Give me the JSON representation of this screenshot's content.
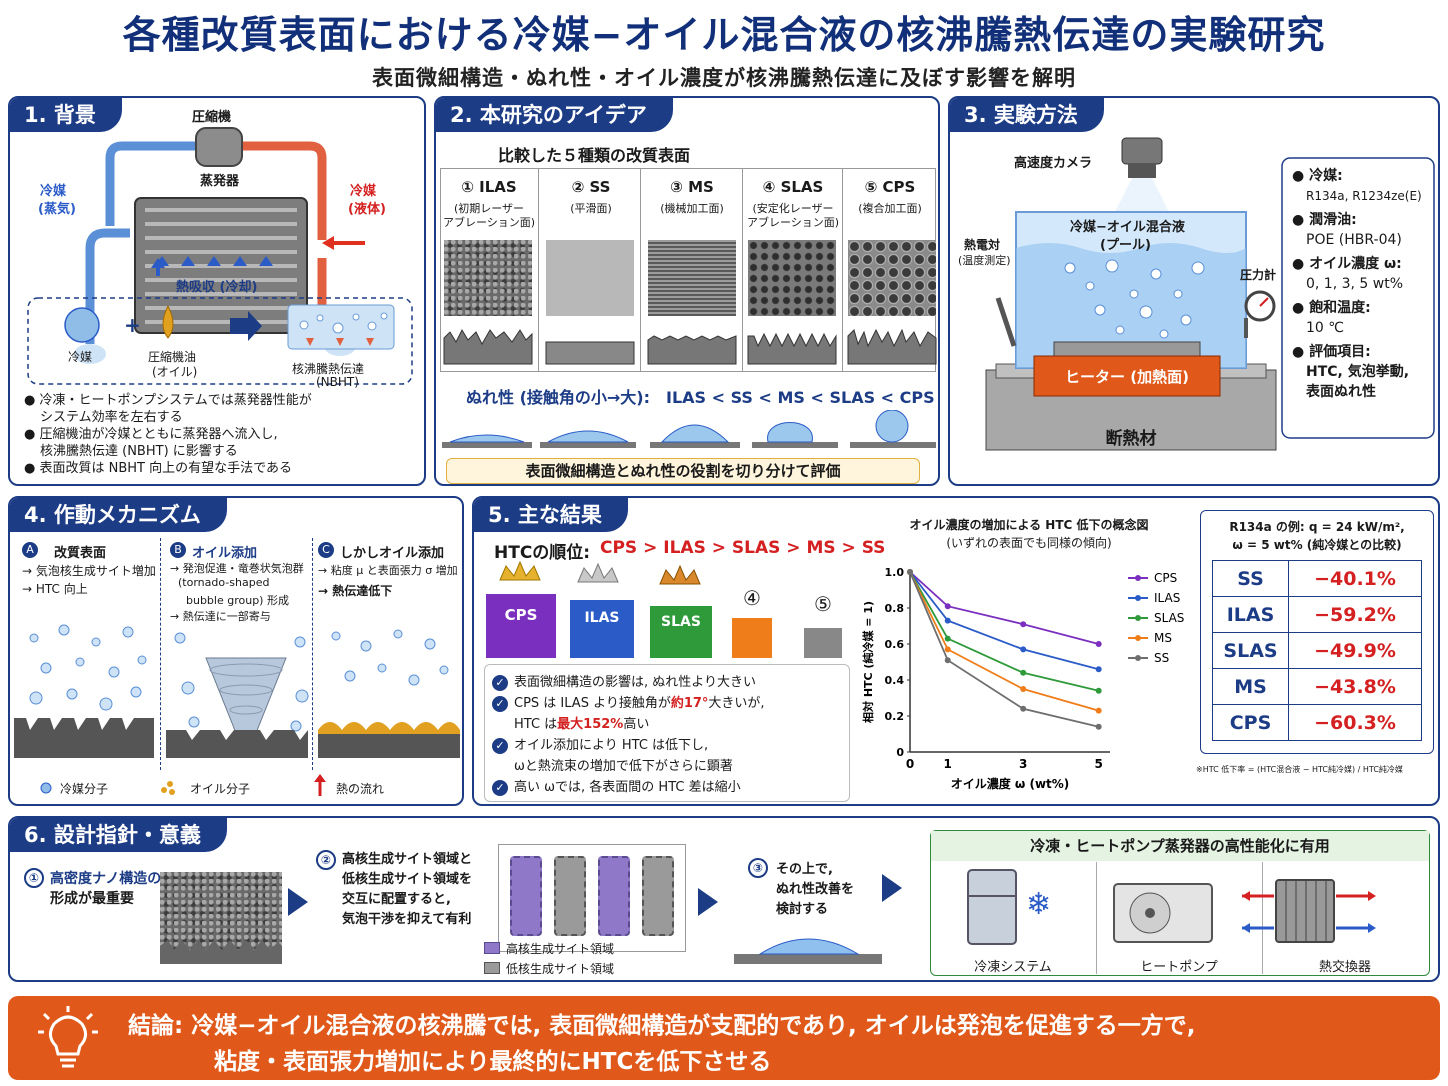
{
  "header": {
    "title": "各種改質表面における冷媒−オイル混合液の核沸騰熱伝達の実験研究",
    "subtitle": "表面微細構造・ぬれ性・オイル濃度が核沸騰熱伝達に及ぼす影響を解明"
  },
  "s1": {
    "title": "1. 背景",
    "compressor": "圧縮機",
    "evaporator": "蒸発器",
    "vapor1": "冷媒",
    "vapor2": "(蒸気)",
    "liquid1": "冷媒",
    "liquid2": "(液体)",
    "heat_absorb": "熱吸収 (冷却)",
    "refrigerant": "冷媒",
    "oil1": "圧縮機油",
    "oil2": "(オイル)",
    "nbht1": "核沸騰熱伝達",
    "nbht2": "(NBHT)",
    "bullets": [
      "冷凍・ヒートポンプシステムでは蒸発器性能が",
      "システム効率を左右する",
      "圧縮機油が冷媒とともに蒸発器へ流入し,",
      "核沸騰熱伝達 (NBHT) に影響する",
      "表面改質は NBHT 向上の有望な手法である"
    ]
  },
  "s2": {
    "title": "2. 本研究のアイデア",
    "compare": "比較した５種類の改質表面",
    "surfaces": [
      {
        "name": "① ILAS",
        "d1": "(初期レーザー",
        "d2": "アブレーション面)"
      },
      {
        "name": "② SS",
        "d1": "(平滑面)",
        "d2": ""
      },
      {
        "name": "③ MS",
        "d1": "(機械加工面)",
        "d2": ""
      },
      {
        "name": "④ SLAS",
        "d1": "(安定化レーザー",
        "d2": "アブレーション面)"
      },
      {
        "name": "⑤ CPS",
        "d1": "(複合加工面)",
        "d2": ""
      }
    ],
    "wettability": "ぬれ性 (接触角の小→大):　ILAS < SS < MS < SLAS < CPS",
    "role": "表面微細構造とぬれ性の役割を切り分けて評価"
  },
  "s3": {
    "title": "3. 実験方法",
    "camera": "高速度カメラ",
    "pool1": "冷媒−オイル混合液",
    "pool2": "(プール)",
    "tc1": "熱電対",
    "tc2": "(温度測定)",
    "gauge": "圧力計",
    "heater": "ヒーター (加熱面)",
    "insulation": "断熱材",
    "specs": [
      {
        "label": "冷媒:",
        "value": "R134a,  R1234ze(E)"
      },
      {
        "label": "潤滑油:",
        "value": "POE (HBR-04)"
      },
      {
        "label": "オイル濃度 ω:",
        "value": "0, 1, 3, 5 wt%"
      },
      {
        "label": "飽和温度:",
        "value": "10 ℃"
      },
      {
        "label": "評価項目:",
        "value": "HTC, 気泡挙動,",
        "value2": "表面ぬれ性"
      }
    ]
  },
  "s4": {
    "title": "4. 作動メカニズム",
    "a_head": "改質表面",
    "a1": "→ 気泡核生成サイト増加",
    "a2": "→ HTC 向上",
    "b_head": "オイル添加",
    "b1": "→ 発泡促進・竜巻状気泡群",
    "b2": "(tornado-shaped",
    "b3": "bubble group) 形成",
    "b4": "→ 熱伝達に一部寄与",
    "c_head": "しかしオイル添加",
    "c1": "→ 粘度 μ と表面張力 σ 増加",
    "c2": "→ 熱伝達低下",
    "legend_ref": "冷媒分子",
    "legend_oil": "オイル分子",
    "legend_heat": "熱の流れ",
    "labels": [
      "A",
      "B",
      "C"
    ]
  },
  "s5": {
    "title": "5. 主な結果",
    "rank_label": "HTCの順位:",
    "rank_value": "CPS > ILAS > SLAS > MS > SS",
    "podium": [
      "CPS",
      "ILAS",
      "SLAS",
      "④",
      "⑤"
    ],
    "findings": [
      "表面微細構造の影響は, ぬれ性より大きい",
      "CPS は ILAS より接触角が",
      "約17°",
      "大きいが,",
      "HTC は",
      "最大152%",
      "高い",
      "オイル添加により HTC は低下し,",
      "ωと熱流束の増加で低下がさらに顕著",
      "高い ωでは, 各表面間の HTC 差は縮小"
    ],
    "table_caption1": "R134a の例: q = 24 kW/m²,",
    "table_caption2": "ω = 5 wt% (純冷媒との比較)",
    "rows": [
      {
        "name": "SS",
        "value": "−40.1%"
      },
      {
        "name": "ILAS",
        "value": "−59.2%"
      },
      {
        "name": "SLAS",
        "value": "−49.9%"
      },
      {
        "name": "MS",
        "value": "−43.8%"
      },
      {
        "name": "CPS",
        "value": "−60.3%"
      }
    ],
    "footnote": "※HTC 低下率 = (HTC混合液 − HTC純冷媒) / HTC純冷媒"
  },
  "chart_data": {
    "type": "line",
    "title": "オイル濃度の増加による HTC 低下の概念図",
    "subtitle": "(いずれの表面でも同様の傾向)",
    "xlabel": "オイル濃度 ω (wt%)",
    "ylabel": "相対 HTC (純冷媒 = 1)",
    "x": [
      0,
      1,
      3,
      5
    ],
    "xlim": [
      0,
      5.3
    ],
    "ylim": [
      0,
      1.0
    ],
    "xticks": [
      "0",
      "1",
      "3",
      "5"
    ],
    "yticks": [
      "0",
      "0.2",
      "0.4",
      "0.6",
      "0.8",
      "1.0"
    ],
    "series": [
      {
        "name": "CPS",
        "color": "#7b2fbf",
        "values": [
          1.0,
          0.81,
          0.71,
          0.6
        ]
      },
      {
        "name": "ILAS",
        "color": "#2a5bc7",
        "values": [
          1.0,
          0.73,
          0.57,
          0.46
        ]
      },
      {
        "name": "SLAS",
        "color": "#2e9a3a",
        "values": [
          1.0,
          0.63,
          0.44,
          0.34
        ]
      },
      {
        "name": "MS",
        "color": "#ef7d1a",
        "values": [
          1.0,
          0.57,
          0.35,
          0.23
        ]
      },
      {
        "name": "SS",
        "color": "#6e6e6e",
        "values": [
          1.0,
          0.51,
          0.24,
          0.14
        ]
      }
    ],
    "legend": "right"
  },
  "s6": {
    "title": "6. 設計指針・意義",
    "step1a": "高密度ナノ構造の",
    "step1b": "形成が最重要",
    "step2a": "高核生成サイト領域と",
    "step2b": "低核生成サイト領域を",
    "step2c": "交互に配置すると,",
    "step2d": "気泡干渉を抑えて有利",
    "leg_high": "高核生成サイト領域",
    "leg_low": "低核生成サイト領域",
    "step3a": "その上で,",
    "step3b": "ぬれ性改善を",
    "step3c": "検討する",
    "apps_title": "冷凍・ヒートポンプ蒸発器の高性能化に有用",
    "apps": [
      "冷凍システム",
      "ヒートポンプ",
      "熱交換器"
    ],
    "nums": [
      "①",
      "②",
      "③"
    ]
  },
  "conclusion": {
    "line1": "結論: 冷媒−オイル混合液の核沸騰では, 表面微細構造が支配的であり, オイルは発泡を促進する一方で,",
    "line2": "粘度・表面張力増加により最終的にHTCを低下させる"
  },
  "colors": {
    "navy": "#1d3c86",
    "red": "#d42020",
    "orange": "#e0591a"
  }
}
